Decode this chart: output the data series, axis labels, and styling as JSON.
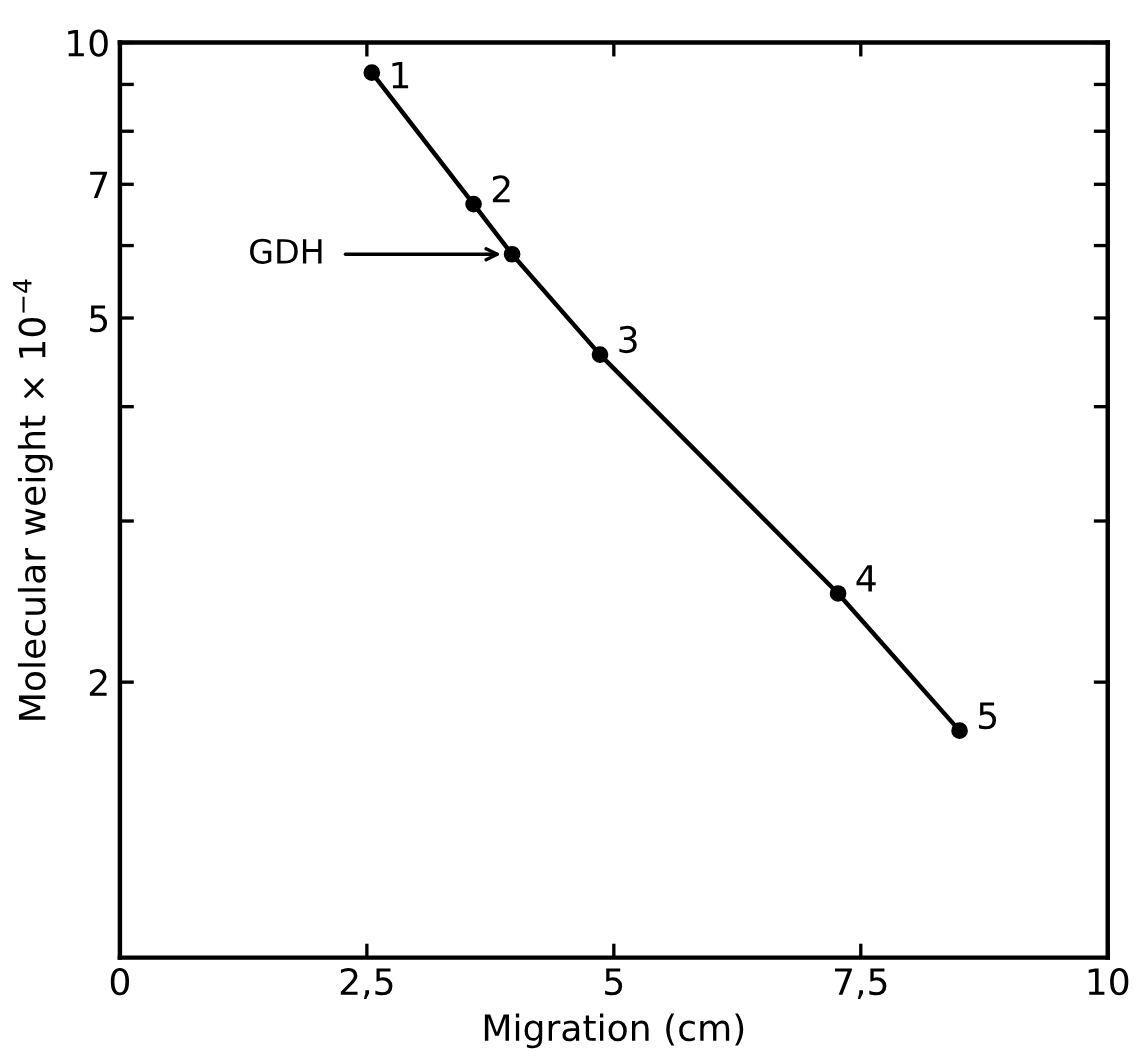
{
  "chart_data": {
    "type": "line",
    "xlabel": "Migration (cm)",
    "ylabel": "Molecular weight × 10$^{−4}$",
    "x": [
      2.55,
      3.58,
      3.97,
      4.86,
      7.27,
      8.5
    ],
    "series": [
      {
        "color": "#000000",
        "values": [
          9.27,
          6.66,
          5.87,
          4.56,
          2.5,
          1.77
        ]
      }
    ],
    "marker": "circle",
    "line_style": "solid",
    "log": "y",
    "grid": false,
    "legend": false,
    "xlim": [
      0,
      10
    ],
    "xticks": [
      0,
      {
        "value": 2.5,
        "label": "2,5"
      },
      5,
      {
        "value": 7.5,
        "label": "7,5"
      },
      10
    ],
    "ylim": [
      1,
      10
    ],
    "yticks": [
      2,
      {
        "value": 3,
        "label": null
      },
      {
        "value": 4,
        "label": null
      },
      5,
      {
        "value": 6,
        "label": null
      },
      7,
      {
        "value": 8,
        "label": null
      },
      {
        "value": 9,
        "label": null
      },
      10
    ],
    "annotations": [
      {
        "text": "1",
        "x": 2.55,
        "y": 9.27
      },
      {
        "text": "2",
        "x": 3.58,
        "y": 6.66
      },
      "GDH",
      {
        "text": "3",
        "x": 4.86,
        "y": 4.56
      },
      {
        "text": "4",
        "x": 7.27,
        "y": 2.5
      },
      {
        "text": "5",
        "x": 8.5,
        "y": 1.77
      }
    ]
  }
}
